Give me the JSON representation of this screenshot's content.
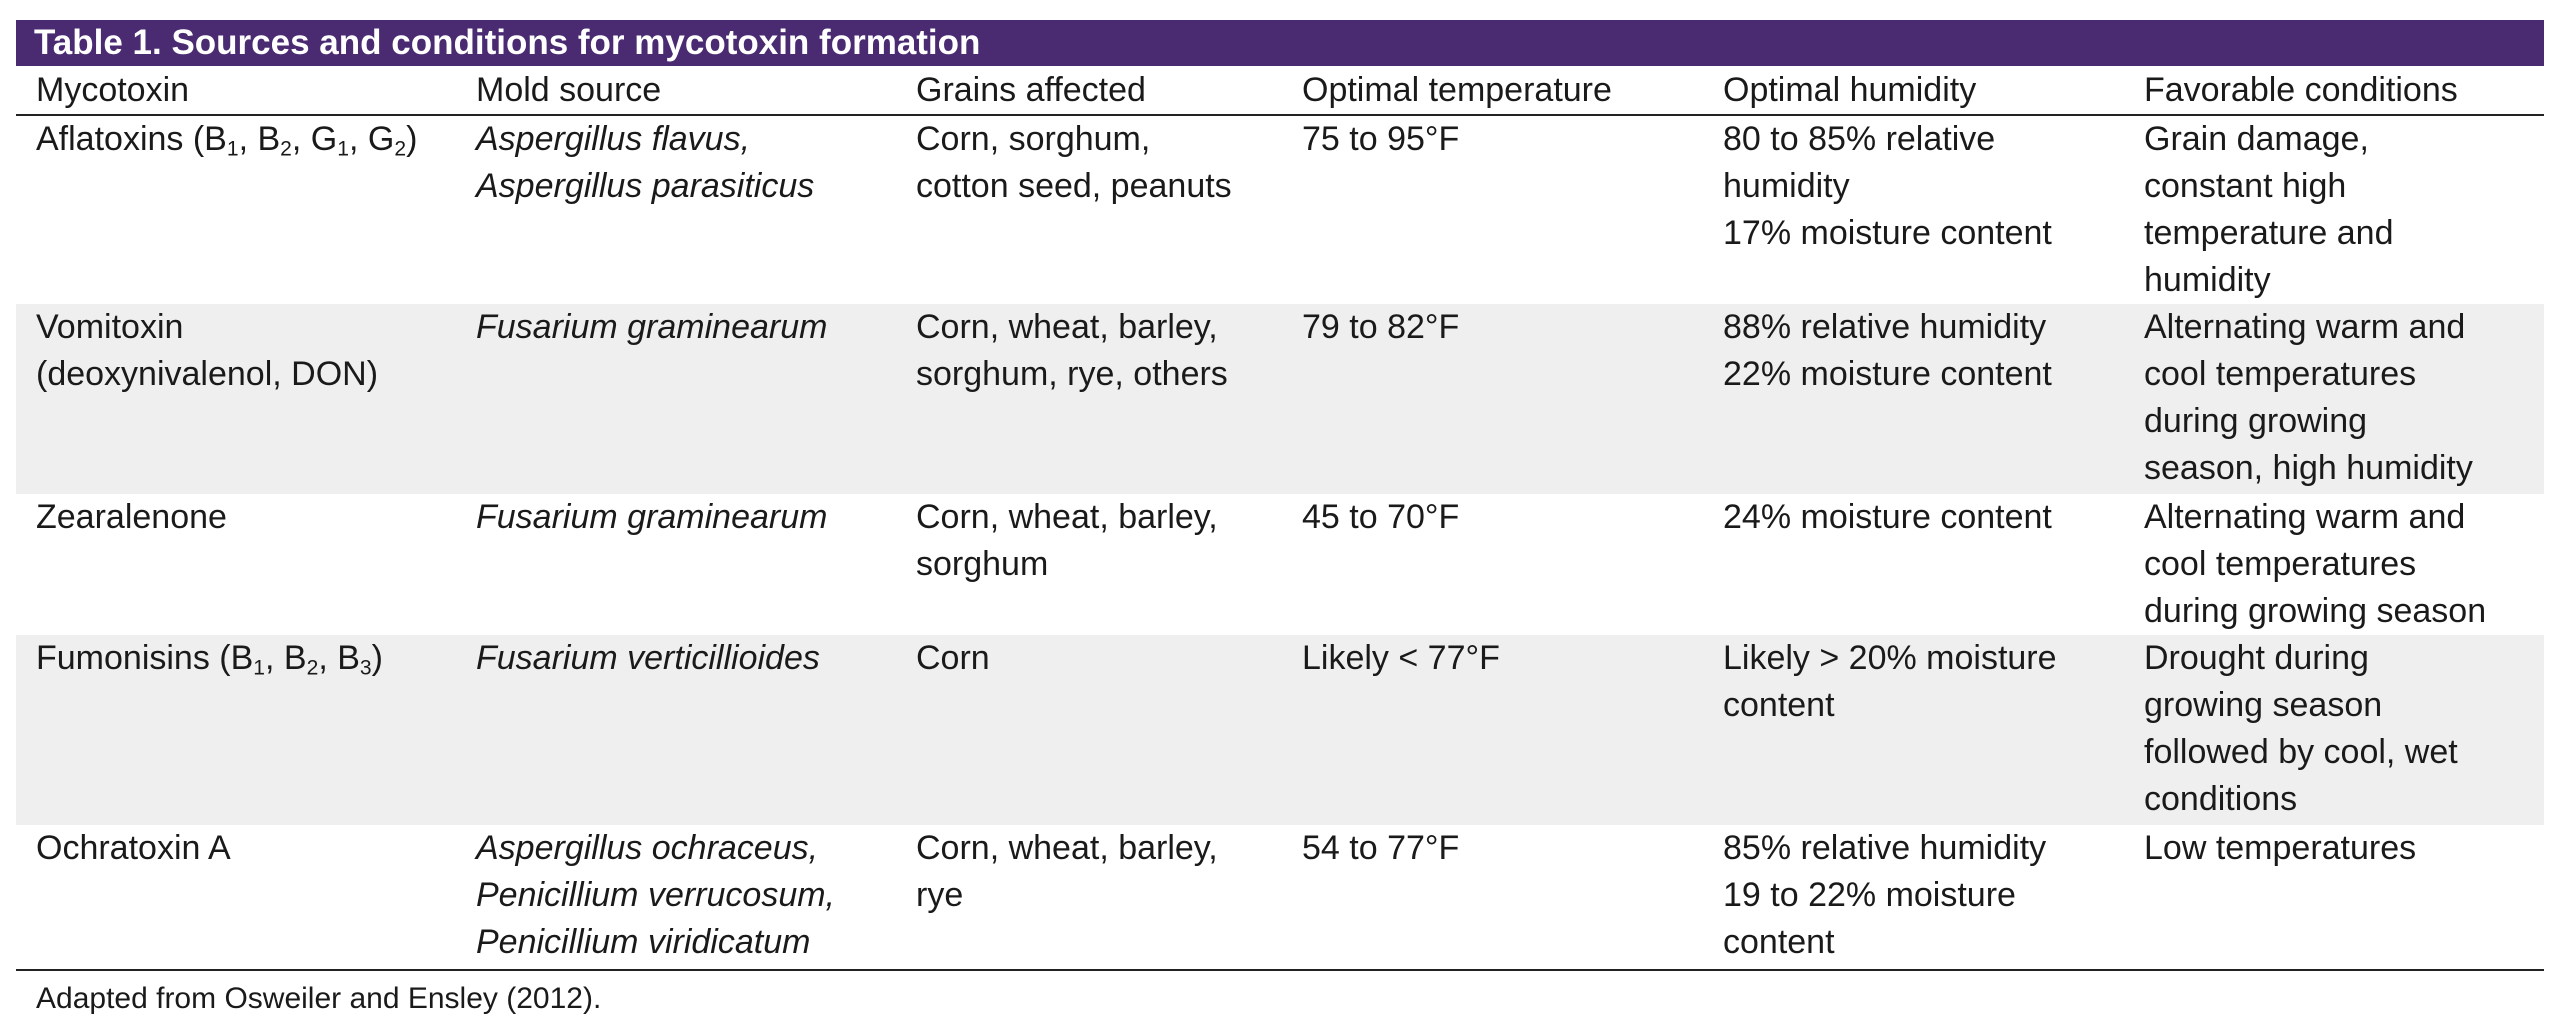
{
  "title": "Table 1. Sources and conditions for mycotoxin formation",
  "columns": [
    "Mycotoxin",
    "Mold source",
    "Grains affected",
    "Optimal temperature",
    "Optimal humidity",
    "Favorable conditions"
  ],
  "rows": [
    {
      "mycotoxin": {
        "name": "Aflatoxins (B",
        "subs": [
          "1",
          "2",
          "1",
          "2"
        ],
        "letters": [
          ", B",
          ", G",
          ", G",
          ")"
        ]
      },
      "mold": [
        "Aspergillus flavus,",
        "Aspergillus parasiticus"
      ],
      "grains": [
        "Corn, sorghum,",
        "cotton seed, peanuts"
      ],
      "temp": "75 to 95°F",
      "humidity": [
        "80 to 85% relative",
        "humidity",
        "17% moisture content"
      ],
      "conditions": [
        "Grain damage,",
        "constant high",
        "temperature and",
        "humidity"
      ]
    },
    {
      "mycotoxin": [
        "Vomitoxin",
        "(deoxynivalenol, DON)"
      ],
      "mold": [
        "Fusarium graminearum"
      ],
      "grains": [
        "Corn, wheat, barley,",
        "sorghum, rye, others"
      ],
      "temp": "79 to 82°F",
      "humidity": [
        "88% relative humidity",
        "22% moisture content"
      ],
      "conditions": [
        "Alternating warm and",
        "cool temperatures",
        "during growing",
        "season, high humidity"
      ]
    },
    {
      "mycotoxin": [
        "Zearalenone"
      ],
      "mold": [
        "Fusarium graminearum"
      ],
      "grains": [
        "Corn, wheat, barley,",
        "sorghum"
      ],
      "temp": "45 to 70°F",
      "humidity": [
        "24% moisture content"
      ],
      "conditions": [
        "Alternating warm and",
        "cool temperatures",
        "during growing season"
      ]
    },
    {
      "mycotoxin": {
        "name": "Fumonisins (B",
        "subs": [
          "1",
          "2",
          "3"
        ],
        "letters": [
          ", B",
          ", B",
          ")"
        ]
      },
      "mold": [
        "Fusarium verticillioides"
      ],
      "grains": [
        "Corn"
      ],
      "temp": "Likely < 77°F",
      "humidity": [
        "Likely > 20% moisture",
        "content"
      ],
      "conditions": [
        "Drought during",
        "growing season",
        "followed by cool, wet",
        "conditions"
      ]
    },
    {
      "mycotoxin": [
        "Ochratoxin A"
      ],
      "mold": [
        "Aspergillus ochraceus,",
        "Penicillium verrucosum,",
        "Penicillium viridicatum"
      ],
      "grains": [
        "Corn, wheat, barley,",
        "rye"
      ],
      "temp": "54 to 77°F",
      "humidity": [
        "85% relative humidity",
        "19 to 22% moisture",
        "content"
      ],
      "conditions": [
        "Low temperatures"
      ]
    }
  ],
  "source_note": "Adapted from Osweiler and Ensley (2012)."
}
